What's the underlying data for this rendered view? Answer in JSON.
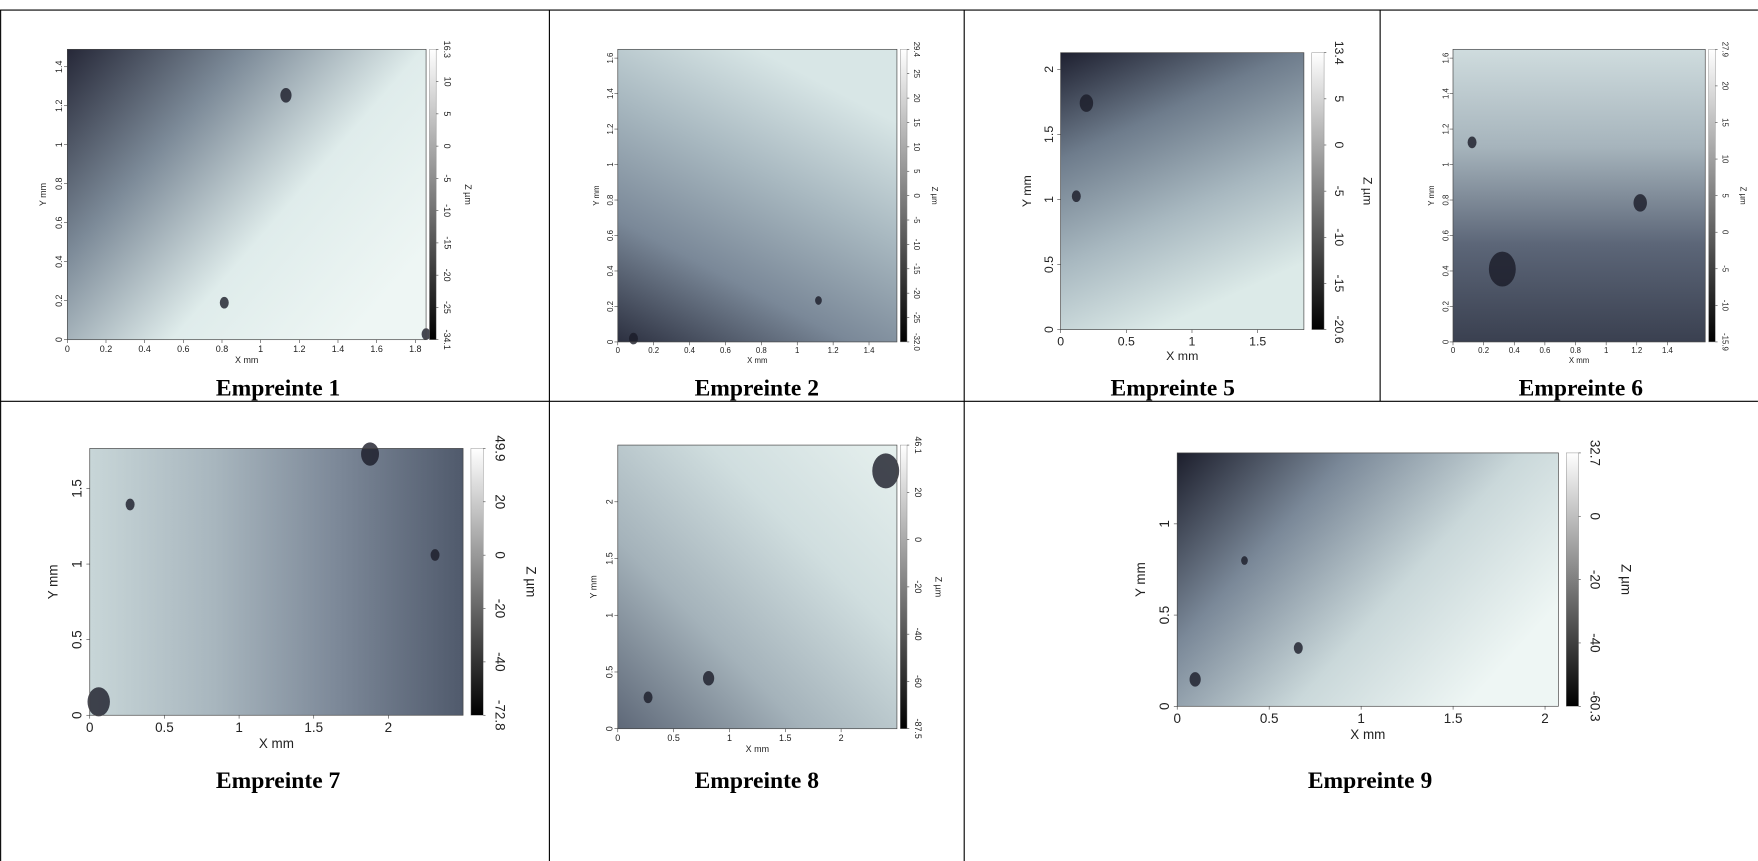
{
  "panels": [
    {
      "caption": "Empreinte 1",
      "x_label": "X mm",
      "y_label": "Y mm",
      "z_label": "Z µm",
      "x_ticks": [
        "0",
        "0.2",
        "0.4",
        "0.6",
        "0.8",
        "1",
        "1.2",
        "1.4",
        "1.6",
        "1.8"
      ],
      "y_ticks": [
        "0",
        "0.2",
        "0.4",
        "0.6",
        "0.8",
        "1",
        "1.2",
        "1.4"
      ],
      "z_ticks": [
        "16.3",
        "10",
        "5",
        "0",
        "-5",
        "-10",
        "-15",
        "-20",
        "-25",
        "-34.1"
      ]
    },
    {
      "caption": "Empreinte 2",
      "x_label": "X mm",
      "y_label": "Y mm",
      "z_label": "Z µm",
      "x_ticks": [
        "0",
        "0.2",
        "0.4",
        "0.6",
        "0.8",
        "1",
        "1.2",
        "1.4"
      ],
      "y_ticks": [
        "0",
        "0.2",
        "0.4",
        "0.6",
        "0.8",
        "1",
        "1.2",
        "1.4",
        "1.6"
      ],
      "z_ticks": [
        "29.4",
        "25",
        "20",
        "15",
        "10",
        "5",
        "0",
        "-5",
        "-10",
        "-15",
        "-20",
        "-25",
        "-32.0"
      ]
    },
    {
      "caption": "Empreinte 5",
      "x_label": "X mm",
      "y_label": "Y mm",
      "z_label": "Z µm",
      "x_ticks": [
        "0",
        "0.5",
        "1",
        "1.5"
      ],
      "y_ticks": [
        "0",
        "0.5",
        "1",
        "1.5",
        "2"
      ],
      "z_ticks": [
        "13.4",
        "5",
        "0",
        "-5",
        "-10",
        "-15",
        "-20.6"
      ]
    },
    {
      "caption": "Empreinte 6",
      "x_label": "X mm",
      "y_label": "Y mm",
      "z_label": "Z µm",
      "x_ticks": [
        "0",
        "0.2",
        "0.4",
        "0.6",
        "0.8",
        "1",
        "1.2",
        "1.4"
      ],
      "y_ticks": [
        "0",
        "0.2",
        "0.4",
        "0.6",
        "0.8",
        "1",
        "1.2",
        "1.4",
        "1.6"
      ],
      "z_ticks": [
        "27.9",
        "20",
        "15",
        "10",
        "5",
        "0",
        "-5",
        "-10",
        "-15.9"
      ]
    },
    {
      "caption": "Empreinte 7",
      "x_label": "X mm",
      "y_label": "Y mm",
      "z_label": "Z µm",
      "x_ticks": [
        "0",
        "0.5",
        "1",
        "1.5",
        "2"
      ],
      "y_ticks": [
        "0",
        "0.5",
        "1",
        "1.5"
      ],
      "z_ticks": [
        "49.9",
        "20",
        "0",
        "-20",
        "-40",
        "-72.8"
      ]
    },
    {
      "caption": "Empreinte 8",
      "x_label": "X mm",
      "y_label": "Y mm",
      "z_label": "Z µm",
      "x_ticks": [
        "0",
        "0.5",
        "1",
        "1.5",
        "2"
      ],
      "y_ticks": [
        "0",
        "0.5",
        "1",
        "1.5",
        "2"
      ],
      "z_ticks": [
        "46.1",
        "20",
        "0",
        "-20",
        "-40",
        "-60",
        "-87.5"
      ]
    },
    {
      "caption": "Empreinte 9",
      "x_label": "X mm",
      "y_label": "Y mm",
      "z_label": "Z µm",
      "x_ticks": [
        "0",
        "0.5",
        "1",
        "1.5",
        "2"
      ],
      "y_ticks": [
        "0",
        "0.5",
        "1"
      ],
      "z_ticks": [
        "32.7",
        "0",
        "-20",
        "-40",
        "-60.3"
      ]
    }
  ]
}
